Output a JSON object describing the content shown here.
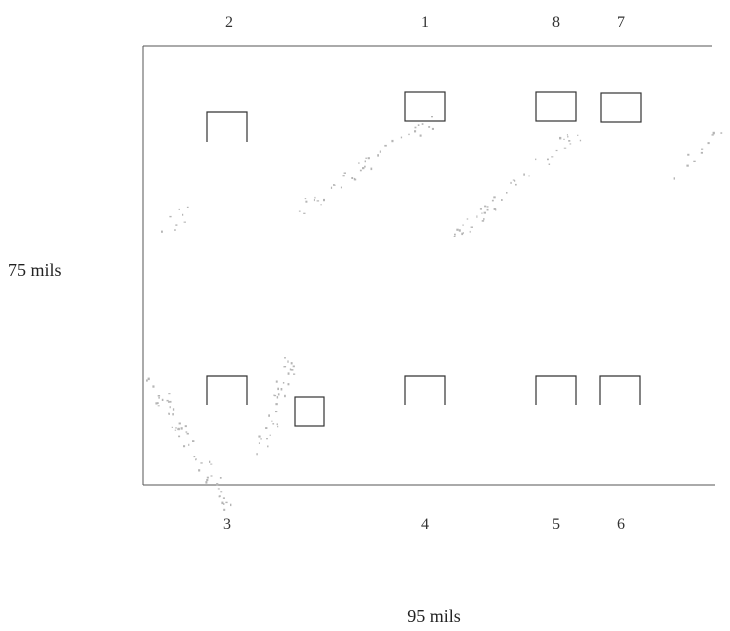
{
  "pad_labels": {
    "top": [
      "2",
      "1",
      "8",
      "7"
    ],
    "bottom": [
      "3",
      "4",
      "5",
      "6"
    ]
  },
  "dimensions": {
    "height_label": "75 mils",
    "width_label": "95 mils"
  },
  "colors": {
    "outline": "#555555",
    "pad": "#333333",
    "speck": "#b5b5b5"
  }
}
